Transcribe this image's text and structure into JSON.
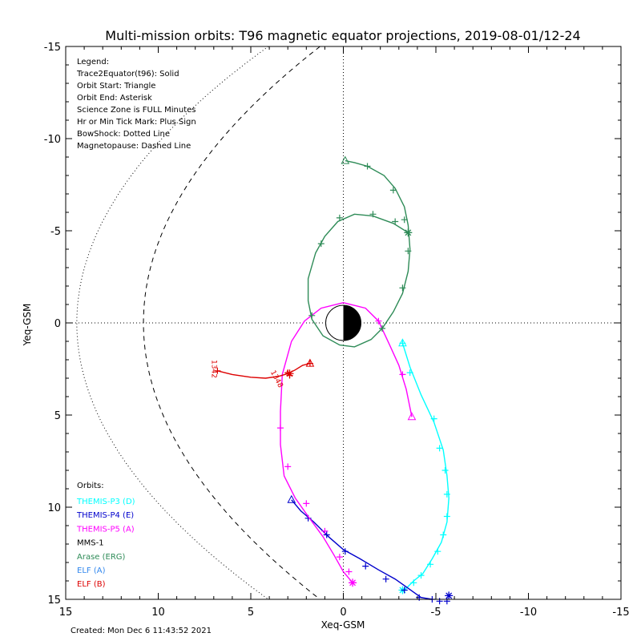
{
  "chart_data": {
    "type": "line",
    "title": "Multi-mission orbits: T96 magnetic equator projections, 2019-08-01/12-24",
    "xlabel": "Xeq-GSM",
    "ylabel": "Yeq-GSM",
    "xlim": [
      15,
      -15
    ],
    "ylim": [
      -15,
      15
    ],
    "x_ticks": [
      "15",
      "10",
      "5",
      "0",
      "-5",
      "-10",
      "-15"
    ],
    "y_ticks": [
      "-15",
      "-10",
      "-5",
      "0",
      "5",
      "10",
      "15"
    ],
    "x_tick_values": [
      15,
      10,
      5,
      0,
      -5,
      -10,
      -15
    ],
    "y_tick_values": [
      -15,
      -10,
      -5,
      0,
      5,
      10,
      15
    ],
    "legend_lines": [
      "Legend:",
      "Trace2Equator(t96): Solid",
      "Orbit Start: Triangle",
      "Orbit End: Asterisk",
      "Science Zone is FULL Minutes",
      "Hr or Min Tick Mark: Plus Sign",
      "BowShock: Dotted Line",
      "Magnetopause: Dashed Line"
    ],
    "orbits_header": "Orbits:",
    "created": "Created: Mon Dec  6 11:43:52 2021",
    "annotations": [
      {
        "text": "1342",
        "x": 7.1,
        "y": 2.5,
        "color": "#dd0000",
        "rotate": 90
      },
      {
        "text": "1348",
        "x": 3.7,
        "y": 3.1,
        "color": "#dd0000",
        "rotate": 62
      }
    ],
    "series": [
      {
        "name": "THEMIS-P3 (D)",
        "color": "#00ffff",
        "points": [
          [
            -3.2,
            1.1
          ],
          [
            -3.6,
            2.4
          ],
          [
            -4.2,
            3.9
          ],
          [
            -4.9,
            5.4
          ],
          [
            -5.4,
            6.9
          ],
          [
            -5.6,
            8.3
          ],
          [
            -5.7,
            9.5
          ],
          [
            -5.6,
            10.8
          ],
          [
            -5.3,
            11.9
          ],
          [
            -4.8,
            12.8
          ],
          [
            -4.3,
            13.6
          ],
          [
            -3.8,
            14.0
          ],
          [
            -3.3,
            14.5
          ]
        ],
        "ticks": [
          [
            -3.2,
            1.1
          ],
          [
            -3.6,
            2.7
          ],
          [
            -4.9,
            5.2
          ],
          [
            -5.2,
            6.8
          ],
          [
            -5.5,
            8.0
          ],
          [
            -5.6,
            9.3
          ],
          [
            -5.6,
            10.5
          ],
          [
            -5.4,
            11.5
          ],
          [
            -5.1,
            12.4
          ],
          [
            -4.7,
            13.1
          ],
          [
            -4.2,
            13.7
          ],
          [
            -3.8,
            14.1
          ]
        ],
        "start": [
          -3.2,
          1.1
        ],
        "end": [
          -3.2,
          14.5
        ]
      },
      {
        "name": "THEMIS-P4 (E)",
        "color": "#0000cc",
        "points": [
          [
            2.8,
            9.6
          ],
          [
            2.3,
            10.2
          ],
          [
            1.6,
            10.8
          ],
          [
            0.8,
            11.6
          ],
          [
            0.0,
            12.3
          ],
          [
            -0.9,
            12.8
          ],
          [
            -1.9,
            13.4
          ],
          [
            -2.8,
            13.9
          ],
          [
            -3.5,
            14.4
          ],
          [
            -4.2,
            14.9
          ],
          [
            -4.8,
            15.0
          ]
        ],
        "ticks": [
          [
            1.9,
            10.6
          ],
          [
            0.9,
            11.5
          ],
          [
            -0.1,
            12.4
          ],
          [
            -1.2,
            13.2
          ],
          [
            -2.3,
            13.9
          ],
          [
            -3.3,
            14.5
          ],
          [
            -4.1,
            14.9
          ],
          [
            -4.8,
            15.0
          ],
          [
            -5.2,
            15.1
          ],
          [
            -5.6,
            15.1
          ]
        ],
        "start": [
          2.8,
          9.6
        ],
        "end": [
          -5.7,
          14.8
        ]
      },
      {
        "name": "THEMIS-P5 (A)",
        "color": "#ff00ff",
        "points": [
          [
            -3.7,
            5.1
          ],
          [
            -3.4,
            3.6
          ],
          [
            -3.0,
            2.3
          ],
          [
            -2.5,
            1.2
          ],
          [
            -1.9,
            -0.1
          ],
          [
            -1.2,
            -0.8
          ],
          [
            0.0,
            -1.1
          ],
          [
            1.2,
            -0.8
          ],
          [
            2.1,
            -0.1
          ],
          [
            2.8,
            1.0
          ],
          [
            3.3,
            2.8
          ],
          [
            3.4,
            4.8
          ],
          [
            3.4,
            6.6
          ],
          [
            3.2,
            8.3
          ],
          [
            2.6,
            9.5
          ],
          [
            1.9,
            10.5
          ],
          [
            1.1,
            11.6
          ],
          [
            0.5,
            12.6
          ],
          [
            0.0,
            13.5
          ],
          [
            -0.5,
            14.1
          ]
        ],
        "ticks": [
          [
            -1.9,
            -0.1
          ],
          [
            -3.2,
            2.8
          ],
          [
            3.4,
            5.7
          ],
          [
            3.0,
            7.8
          ],
          [
            2.0,
            9.8
          ],
          [
            1.0,
            11.3
          ],
          [
            0.2,
            12.7
          ],
          [
            -0.3,
            13.5
          ]
        ],
        "start": [
          -3.7,
          5.1
        ],
        "end": [
          -0.5,
          14.1
        ]
      },
      {
        "name": "MMS-1",
        "color": "#000000",
        "points": [],
        "ticks": []
      },
      {
        "name": "Arase (ERG)",
        "color": "#2e8b57",
        "points": [
          [
            -0.1,
            -8.8
          ],
          [
            -0.6,
            -8.7
          ],
          [
            -1.3,
            -8.5
          ],
          [
            -2.2,
            -8.0
          ],
          [
            -2.8,
            -7.3
          ],
          [
            -3.3,
            -6.3
          ],
          [
            -3.5,
            -5.3
          ],
          [
            -3.6,
            -4.0
          ],
          [
            -3.5,
            -2.8
          ],
          [
            -3.2,
            -1.6
          ],
          [
            -2.7,
            -0.6
          ],
          [
            -2.1,
            0.3
          ],
          [
            -1.5,
            0.9
          ],
          [
            -0.6,
            1.3
          ],
          [
            0.2,
            1.2
          ],
          [
            1.1,
            0.7
          ],
          [
            1.7,
            -0.2
          ],
          [
            1.9,
            -1.2
          ],
          [
            1.9,
            -2.4
          ],
          [
            1.5,
            -3.8
          ],
          [
            1.0,
            -4.7
          ],
          [
            0.3,
            -5.5
          ],
          [
            -0.6,
            -5.9
          ],
          [
            -1.6,
            -5.8
          ],
          [
            -2.7,
            -5.4
          ],
          [
            -3.5,
            -4.9
          ]
        ],
        "ticks": [
          [
            -1.3,
            -8.5
          ],
          [
            -2.7,
            -7.2
          ],
          [
            -3.3,
            -5.6
          ],
          [
            -3.5,
            -3.9
          ],
          [
            -3.2,
            -1.9
          ],
          [
            -2.1,
            0.3
          ],
          [
            1.7,
            -0.4
          ],
          [
            1.2,
            -4.3
          ],
          [
            0.2,
            -5.7
          ],
          [
            -1.6,
            -5.9
          ],
          [
            -2.8,
            -5.5
          ]
        ],
        "start": [
          -0.1,
          -8.8
        ],
        "end": [
          -3.5,
          -4.9
        ]
      },
      {
        "name": "ELF (A)",
        "color": "#3388ee",
        "points": [],
        "ticks": []
      },
      {
        "name": "ELF (B)",
        "color": "#dd0000",
        "points": [
          [
            6.8,
            2.6
          ],
          [
            6.0,
            2.8
          ],
          [
            5.0,
            2.95
          ],
          [
            4.2,
            3.0
          ],
          [
            3.5,
            2.9
          ],
          [
            3.0,
            2.75
          ],
          [
            2.6,
            2.55
          ],
          [
            2.2,
            2.3
          ],
          [
            1.8,
            2.2
          ]
        ],
        "ticks": [
          [
            6.8,
            2.6
          ],
          [
            3.0,
            2.7
          ],
          [
            2.9,
            2.85
          ],
          [
            1.8,
            2.2
          ]
        ],
        "start": [
          1.8,
          2.2
        ],
        "end": [
          2.9,
          2.75
        ]
      }
    ],
    "bowshock_label": "BowShock",
    "magnetopause_label": "Magnetopause"
  }
}
